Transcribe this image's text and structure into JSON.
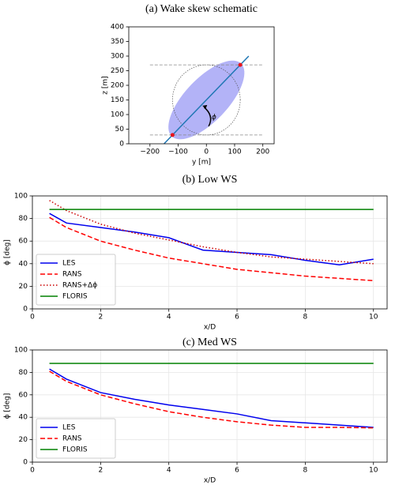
{
  "chart_data": [
    {
      "type": "schematic",
      "title": "(a) Wake skew schematic",
      "xlabel": "y [m]",
      "ylabel": "z [m]",
      "xlim": [
        -275,
        240
      ],
      "ylim": [
        0,
        400
      ],
      "xticks": [
        {
          "value": -200,
          "label": "−200"
        },
        {
          "value": -100,
          "label": "−100"
        },
        0,
        100,
        200
      ],
      "yticks": [
        0,
        50,
        100,
        150,
        200,
        250,
        300,
        350,
        400
      ],
      "ellipse": {
        "center": [
          0,
          150
        ],
        "width": 350,
        "height": 150,
        "angle": 45,
        "color": "#b3b3f7"
      },
      "circle": {
        "center": [
          0,
          150
        ],
        "radius": 120
      },
      "hlines": [
        30,
        270
      ],
      "hline_x": [
        -200,
        200
      ],
      "line": {
        "x": [
          -150,
          150
        ],
        "y": [
          0,
          300
        ],
        "color": "#1f77b4"
      },
      "points": {
        "x": [
          -120,
          120
        ],
        "y": [
          30,
          270
        ],
        "color": "#e8141c"
      },
      "annotation": "ϕ"
    },
    {
      "type": "line",
      "title": "(b) Low WS",
      "xlabel": "x/D",
      "ylabel": "ϕ [deg]",
      "xlim": [
        0,
        10.4
      ],
      "ylim": [
        0,
        100
      ],
      "xticks": [
        0,
        2,
        4,
        6,
        8,
        10
      ],
      "yticks": [
        0,
        20,
        40,
        60,
        80,
        100
      ],
      "grid": true,
      "legend": "lower left",
      "x": [
        0.5,
        1,
        2,
        3,
        4,
        5,
        6,
        7,
        8,
        9,
        10
      ],
      "series": [
        {
          "name": "LES",
          "color": "#0000ee",
          "dash": "solid",
          "values": [
            84.5,
            76,
            72,
            68,
            63,
            52,
            50,
            48,
            43,
            39,
            44
          ]
        },
        {
          "name": "RANS",
          "color": "#ff0000",
          "dash": "dashed",
          "values": [
            81,
            72,
            60,
            52,
            45,
            40,
            35,
            32,
            29,
            27,
            25
          ]
        },
        {
          "name": "RANS+Δϕ",
          "color": "#cc0000",
          "dash": "dotted",
          "values": [
            96,
            87,
            75,
            67,
            61,
            55,
            50,
            46,
            44,
            42,
            40
          ]
        },
        {
          "name": "FLORIS",
          "color": "#008000",
          "dash": "solid",
          "values": [
            88,
            88,
            88,
            88,
            88,
            88,
            88,
            88,
            88,
            88,
            88
          ]
        }
      ]
    },
    {
      "type": "line",
      "title": "(c) Med WS",
      "xlabel": "x/D",
      "ylabel": "ϕ [deg]",
      "xlim": [
        0,
        10.4
      ],
      "ylim": [
        0,
        100
      ],
      "xticks": [
        0,
        2,
        4,
        6,
        8,
        10
      ],
      "yticks": [
        0,
        20,
        40,
        60,
        80,
        100
      ],
      "grid": true,
      "legend": "lower left",
      "x": [
        0.5,
        1,
        2,
        3,
        4,
        5,
        6,
        7,
        8,
        9,
        10
      ],
      "series": [
        {
          "name": "LES",
          "color": "#0000ee",
          "dash": "solid",
          "values": [
            83,
            74,
            62,
            56,
            51,
            47,
            43,
            37,
            35,
            33,
            31
          ]
        },
        {
          "name": "RANS",
          "color": "#ff0000",
          "dash": "dashed",
          "values": [
            81,
            72,
            60,
            52,
            45,
            40,
            36,
            33,
            31,
            31,
            30.5
          ]
        },
        {
          "name": "FLORIS",
          "color": "#008000",
          "dash": "solid",
          "values": [
            88,
            88,
            88,
            88,
            88,
            88,
            88,
            88,
            88,
            88,
            88
          ]
        }
      ]
    }
  ]
}
